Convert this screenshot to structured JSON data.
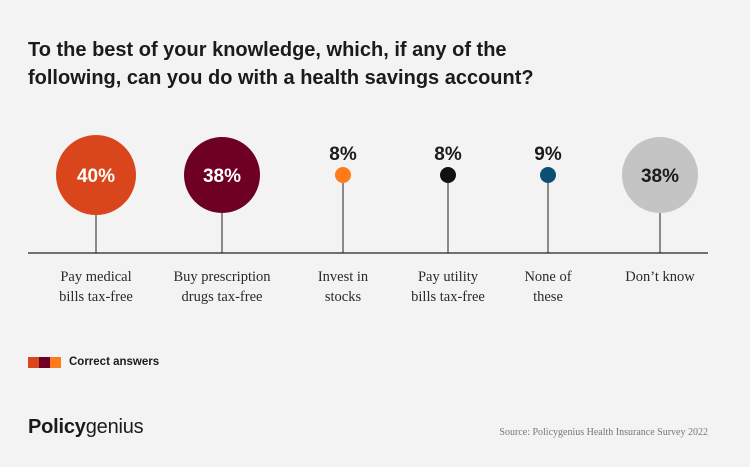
{
  "title": "To the best of your knowledge, which, if any of the following, can you do with a health savings account?",
  "chart_data": {
    "type": "bubble-timeline",
    "categories": [
      {
        "label_lines": [
          "Pay medical",
          "bills tax-free"
        ],
        "value": 40,
        "display": "40%",
        "color": "#d9461c",
        "correct": true
      },
      {
        "label_lines": [
          "Buy prescription",
          "drugs tax-free"
        ],
        "value": 38,
        "display": "38%",
        "color": "#6e0024",
        "correct": true
      },
      {
        "label_lines": [
          "Invest in",
          "stocks"
        ],
        "value": 8,
        "display": "8%",
        "color": "#ff7a1a",
        "correct": true
      },
      {
        "label_lines": [
          "Pay utility",
          "bills tax-free"
        ],
        "value": 8,
        "display": "8%",
        "color": "#111111",
        "correct": false
      },
      {
        "label_lines": [
          "None of",
          "these"
        ],
        "value": 9,
        "display": "9%",
        "color": "#0c4f73",
        "correct": false
      },
      {
        "label_lines": [
          "Don’t know"
        ],
        "value": 38,
        "display": "38%",
        "color": "#c4c4c4",
        "correct": false
      }
    ],
    "legend": {
      "label": "Correct answers",
      "colors": [
        "#d9461c",
        "#6e0024",
        "#ff7a1a"
      ]
    }
  },
  "brand": {
    "bold": "Policy",
    "regular": "genius"
  },
  "source": "Source: Policygenius Health Insurance Survey 2022"
}
